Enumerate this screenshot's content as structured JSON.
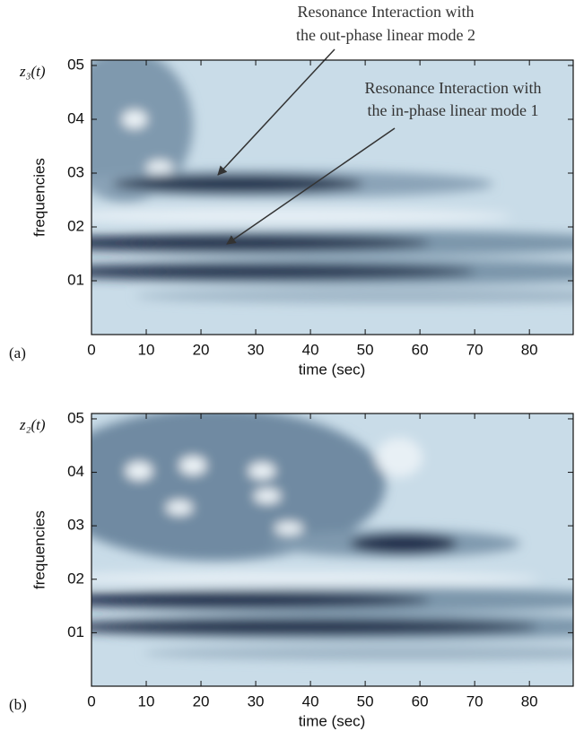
{
  "chart_data": [
    {
      "type": "spectrogram",
      "title": "z₃(t)",
      "panel_label": "(a)",
      "x_label": "time (sec)",
      "y_label": "frequencies",
      "xlim": [
        0,
        88
      ],
      "xticks": [
        0,
        10,
        20,
        30,
        40,
        50,
        60,
        70,
        80
      ],
      "ylim": [
        0,
        0.51
      ],
      "yticks": [
        {
          "value": 0.1,
          "label": "01"
        },
        {
          "value": 0.2,
          "label": "02"
        },
        {
          "value": 0.3,
          "label": "03"
        },
        {
          "value": 0.4,
          "label": "04"
        },
        {
          "value": 0.5,
          "label": "05"
        }
      ],
      "annotations": [
        [
          "Resonance Interaction with",
          "the out-phase linear mode 2"
        ],
        [
          "Resonance Interaction with",
          "the in-phase linear mode 1"
        ]
      ]
    },
    {
      "type": "spectrogram",
      "title": "z₂(t)",
      "panel_label": "(b)",
      "x_label": "time (sec)",
      "y_label": "frequencies",
      "xlim": [
        0,
        88
      ],
      "xticks": [
        0,
        10,
        20,
        30,
        40,
        50,
        60,
        70,
        80
      ],
      "ylim": [
        0,
        0.51
      ],
      "yticks": [
        {
          "value": 0.1,
          "label": "01"
        },
        {
          "value": 0.2,
          "label": "02"
        },
        {
          "value": 0.3,
          "label": "03"
        },
        {
          "value": 0.4,
          "label": "04"
        },
        {
          "value": 0.5,
          "label": "05"
        }
      ]
    }
  ]
}
